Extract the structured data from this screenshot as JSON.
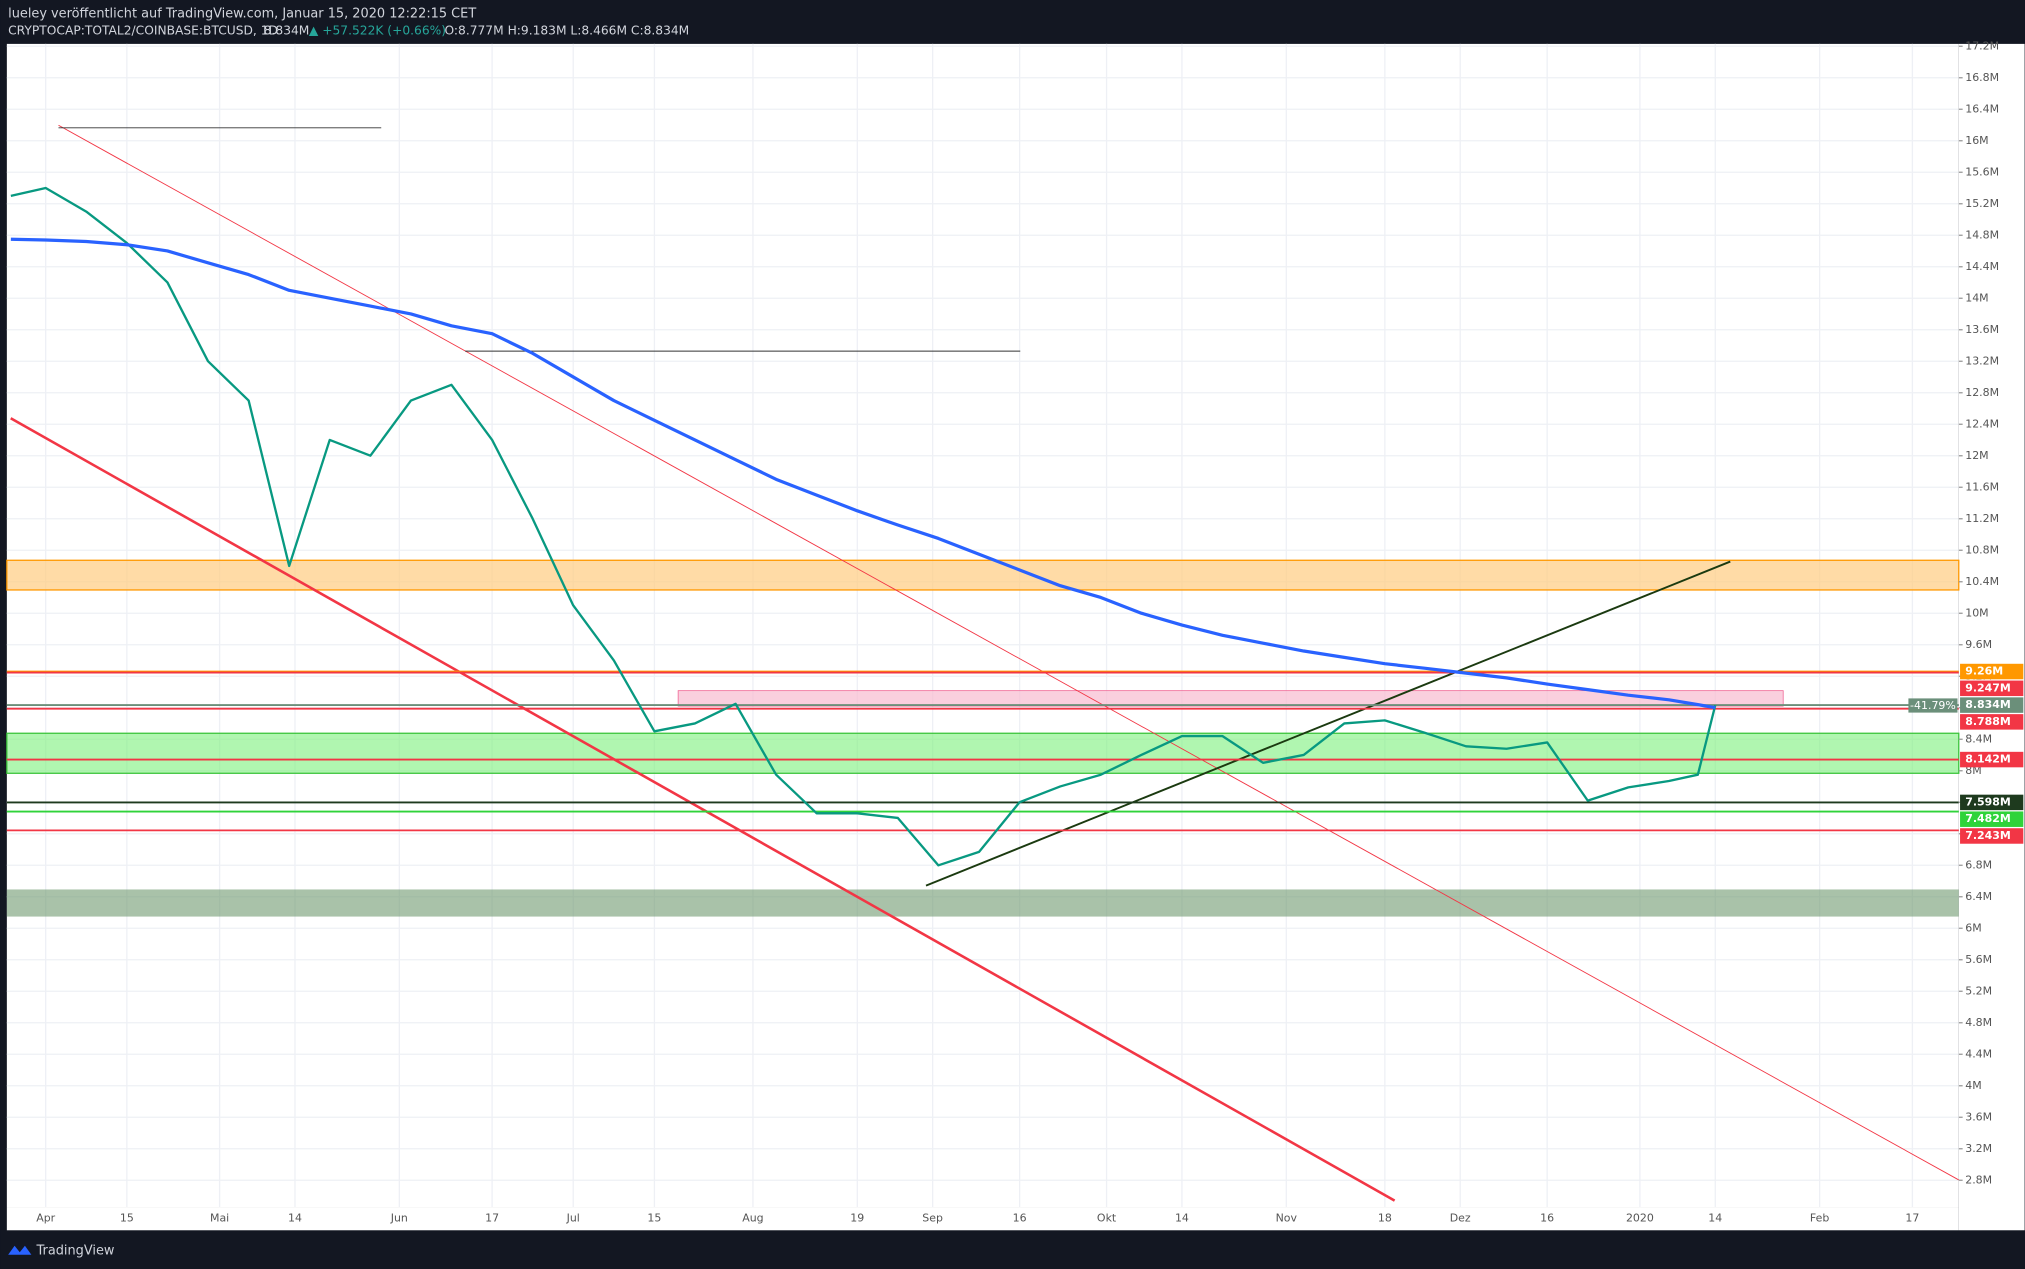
{
  "header": {
    "publisher": "lueley veröffentlicht auf TradingView.com, Januar 15, 2020 12:22:15 CET",
    "symbol": "CRYPTOCAP:TOTAL2/COINBASE:BTCUSD, 1D",
    "last": "8.834M",
    "change": "▲ +57.522K (+0.66%)",
    "ohlc": "O:8.777M H:9.183M L:8.466M C:8.834M"
  },
  "footer": {
    "brand": "TradingView"
  },
  "chart_data": {
    "type": "line",
    "x": [
      -6,
      0,
      7,
      14,
      21,
      28,
      35,
      42,
      49,
      56,
      63,
      70,
      77,
      84,
      91,
      98,
      105,
      112,
      119,
      126,
      133,
      140,
      147,
      154,
      161,
      168,
      175,
      182,
      189,
      196,
      203,
      210,
      217,
      224,
      231,
      238,
      245,
      252,
      259,
      266,
      273,
      280,
      285,
      288
    ],
    "series": [
      {
        "color": "#089981",
        "values": [
          15.3,
          15.4,
          15.1,
          14.7,
          14.2,
          13.2,
          12.7,
          10.6,
          12.2,
          12.0,
          12.7,
          12.9,
          12.2,
          11.2,
          10.1,
          9.4,
          8.5,
          8.6,
          8.85,
          7.95,
          7.46,
          7.46,
          7.4,
          6.8,
          6.97,
          7.6,
          7.8,
          7.95,
          8.2,
          8.44,
          8.44,
          8.1,
          8.2,
          8.6,
          8.64,
          8.48,
          8.31,
          8.28,
          8.36,
          7.62,
          7.79,
          7.87,
          7.95,
          8.834
        ]
      },
      {
        "color": "#2962ff",
        "values": [
          14.75,
          14.74,
          14.72,
          14.68,
          14.6,
          14.45,
          14.3,
          14.1,
          14.0,
          13.9,
          13.8,
          13.65,
          13.55,
          13.3,
          13.0,
          12.7,
          12.45,
          12.2,
          11.95,
          11.7,
          11.5,
          11.3,
          11.12,
          10.95,
          10.75,
          10.55,
          10.35,
          10.2,
          10.0,
          9.85,
          9.72,
          9.62,
          9.52,
          9.44,
          9.36,
          9.3,
          9.24,
          9.18,
          9.1,
          9.03,
          8.96,
          8.9,
          8.84,
          8.8
        ]
      }
    ],
    "xlim": [
      -6.7,
      330
    ],
    "xticks": [
      {
        "value": 0,
        "label": "Apr"
      },
      {
        "value": 14,
        "label": "15"
      },
      {
        "value": 30,
        "label": "Mai"
      },
      {
        "value": 43,
        "label": "14"
      },
      {
        "value": 61,
        "label": "Jun"
      },
      {
        "value": 77,
        "label": "17"
      },
      {
        "value": 91,
        "label": "Jul"
      },
      {
        "value": 105,
        "label": "15"
      },
      {
        "value": 122,
        "label": "Aug"
      },
      {
        "value": 140,
        "label": "19"
      },
      {
        "value": 153,
        "label": "Sep"
      },
      {
        "value": 168,
        "label": "16"
      },
      {
        "value": 183,
        "label": "Okt"
      },
      {
        "value": 196,
        "label": "14"
      },
      {
        "value": 214,
        "label": "Nov"
      },
      {
        "value": 231,
        "label": "18"
      },
      {
        "value": 244,
        "label": "Dez"
      },
      {
        "value": 259,
        "label": "16"
      },
      {
        "value": 275,
        "label": "2020"
      },
      {
        "value": 288,
        "label": "14"
      },
      {
        "value": 306,
        "label": "Feb"
      },
      {
        "value": 322,
        "label": "17"
      }
    ],
    "ylim": [
      2.46,
      17.23
    ],
    "yticks": [
      {
        "value": 2.8,
        "label": "2.8M"
      },
      {
        "value": 3.2,
        "label": "3.2M"
      },
      {
        "value": 3.6,
        "label": "3.6M"
      },
      {
        "value": 4,
        "label": "4M"
      },
      {
        "value": 4.4,
        "label": "4.4M"
      },
      {
        "value": 4.8,
        "label": "4.8M"
      },
      {
        "value": 5.2,
        "label": "5.2M"
      },
      {
        "value": 5.6,
        "label": "5.6M"
      },
      {
        "value": 6,
        "label": "6M"
      },
      {
        "value": 6.4,
        "label": "6.4M"
      },
      {
        "value": 6.8,
        "label": "6.8M"
      },
      {
        "value": 7.2,
        "label": "7.2M"
      },
      {
        "value": 7.6,
        "label": "7.6M"
      },
      {
        "value": 8,
        "label": "8M"
      },
      {
        "value": 8.4,
        "label": "8.4M"
      },
      {
        "value": 8.8,
        "label": "8.8M"
      },
      {
        "value": 9.2,
        "label": "9.2M"
      },
      {
        "value": 9.6,
        "label": "9.6M"
      },
      {
        "value": 10,
        "label": "10M"
      },
      {
        "value": 10.4,
        "label": "10.4M"
      },
      {
        "value": 10.8,
        "label": "10.8M"
      },
      {
        "value": 11.2,
        "label": "11.2M"
      },
      {
        "value": 11.6,
        "label": "11.6M"
      },
      {
        "value": 12,
        "label": "12M"
      },
      {
        "value": 12.4,
        "label": "12.4M"
      },
      {
        "value": 12.8,
        "label": "12.8M"
      },
      {
        "value": 13.2,
        "label": "13.2M"
      },
      {
        "value": 13.6,
        "label": "13.6M"
      },
      {
        "value": 14,
        "label": "14M"
      },
      {
        "value": 14.4,
        "label": "14.4M"
      },
      {
        "value": 14.8,
        "label": "14.8M"
      },
      {
        "value": 15.2,
        "label": "15.2M"
      },
      {
        "value": 15.6,
        "label": "15.6M"
      },
      {
        "value": 16,
        "label": "16M"
      },
      {
        "value": 16.4,
        "label": "16.4M"
      },
      {
        "value": 16.8,
        "label": "16.8M"
      },
      {
        "value": 17.2,
        "label": "17.2M"
      }
    ],
    "grid": true,
    "levels": [
      {
        "value": 9.26,
        "label": "9.26M",
        "color": "#ff9800"
      },
      {
        "value": 9.247,
        "label": "9.247M",
        "color": "#f23645"
      },
      {
        "value": 8.834,
        "label": "8.834M",
        "color": "#6b8f7a"
      },
      {
        "value": 8.788,
        "label": "8.788M",
        "color": "#f23645"
      },
      {
        "value": 8.142,
        "label": "8.142M",
        "color": "#f23645"
      },
      {
        "value": 7.598,
        "label": "7.598M",
        "color": "#1e3a1e"
      },
      {
        "value": 7.482,
        "label": "7.482M",
        "color": "#2fd33a"
      },
      {
        "value": 7.243,
        "label": "7.243M",
        "color": "#f23645"
      }
    ],
    "change_badge": "-41.79%"
  }
}
